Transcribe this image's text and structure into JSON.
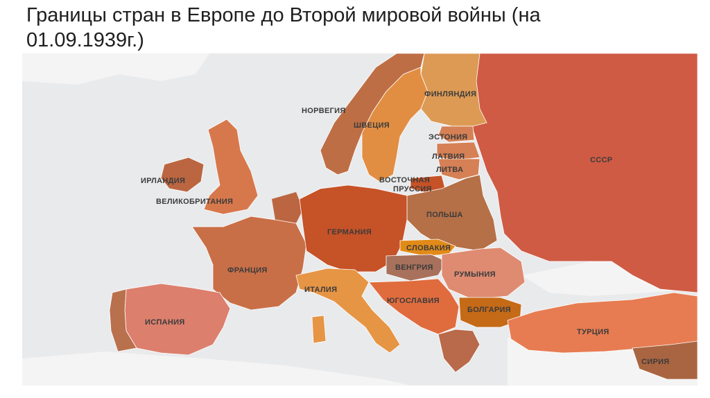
{
  "title": "Границы стран в Европе до Второй мировой войны (на 01.09.1939г.)",
  "colors": {
    "sea": "#e9eaec",
    "neutral_land": "#f4f4f4",
    "ussr": "#cf5b45",
    "germany": "#c65227",
    "finland": "#dd9a55",
    "sweden": "#e18e43",
    "norway": "#be6e45",
    "uk": "#d7784c",
    "ireland": "#bb6641",
    "france": "#c96f47",
    "spain": "#dc7f6d",
    "portugal": "#b9704c",
    "italy": "#e69545",
    "poland": "#b57047",
    "romania": "#de8b72",
    "yugoslavia": "#e06c3e",
    "bulgaria": "#c56a17",
    "turkey": "#e77c52",
    "syria": "#a96541",
    "hungary": "#a8715c",
    "slovakia": "#e28a18",
    "baltic": "#d58055",
    "greece": "#b86a4a"
  },
  "labels": {
    "norway": "НОРВЕГИЯ",
    "sweden": "ШВЕЦИЯ",
    "finland": "ФИНЛЯНДИЯ",
    "estonia": "ЭСТОНИЯ",
    "latvia": "ЛАТВИЯ",
    "lithuania": "ЛИТВА",
    "east_prussia_1": "ВОСТОЧНАЯ",
    "east_prussia_2": "ПРУССИЯ",
    "ussr": "СССР",
    "ireland": "ИРЛАНДИЯ",
    "uk": "ВЕЛИКОБРИТАНИЯ",
    "germany": "ГЕРМАНИЯ",
    "poland": "ПОЛЬША",
    "slovakia": "СЛОВАКИЯ",
    "hungary": "ВЕНГРИЯ",
    "romania": "РУМЫНИЯ",
    "france": "ФРАНЦИЯ",
    "italy": "ИТАЛИЯ",
    "yugoslavia": "ЮГОСЛАВИЯ",
    "bulgaria": "БОЛГАРИЯ",
    "spain": "ИСПАНИЯ",
    "turkey": "ТУРЦИЯ",
    "syria": "СИРИЯ"
  }
}
